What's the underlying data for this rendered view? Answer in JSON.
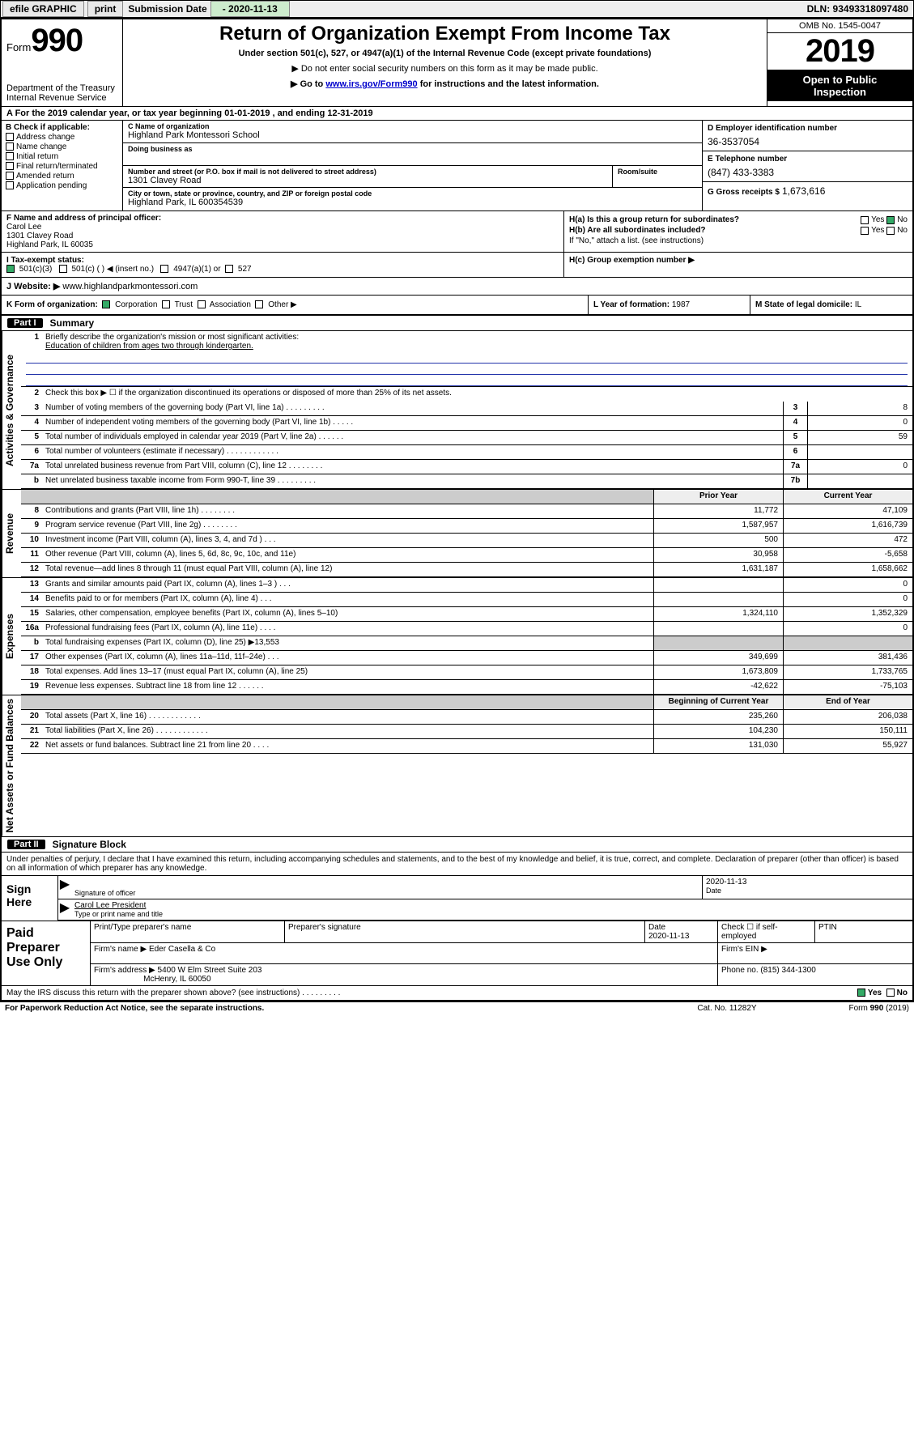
{
  "topbar": {
    "efile_label": "efile GRAPHIC",
    "print_btn": "print",
    "submission_label": "Submission Date",
    "submission_date": "- 2020-11-13",
    "dln": "DLN: 93493318097480"
  },
  "header": {
    "form_word": "Form",
    "form_number": "990",
    "dept": "Department of the Treasury",
    "irs": "Internal Revenue Service",
    "title": "Return of Organization Exempt From Income Tax",
    "subtitle": "Under section 501(c), 527, or 4947(a)(1) of the Internal Revenue Code (except private foundations)",
    "note1": "▶ Do not enter social security numbers on this form as it may be made public.",
    "note2_pre": "▶ Go to ",
    "note2_link": "www.irs.gov/Form990",
    "note2_post": " for instructions and the latest information.",
    "omb": "OMB No. 1545-0047",
    "year": "2019",
    "inspect1": "Open to Public",
    "inspect2": "Inspection"
  },
  "rowA": "A For the 2019 calendar year, or tax year beginning 01-01-2019    , and ending 12-31-2019",
  "colB": {
    "title": "B Check if applicable:",
    "items": [
      "Address change",
      "Name change",
      "Initial return",
      "Final return/terminated",
      "Amended return",
      "Application pending"
    ]
  },
  "colC": {
    "name_lbl": "C Name of organization",
    "name": "Highland Park Montessori School",
    "dba_lbl": "Doing business as",
    "dba": "",
    "addr_lbl": "Number and street (or P.O. box if mail is not delivered to street address)",
    "room_lbl": "Room/suite",
    "addr": "1301 Clavey Road",
    "city_lbl": "City or town, state or province, country, and ZIP or foreign postal code",
    "city": "Highland Park, IL  600354539"
  },
  "colD": {
    "ein_lbl": "D Employer identification number",
    "ein": "36-3537054",
    "tel_lbl": "E Telephone number",
    "tel": "(847) 433-3383",
    "gross_lbl": "G Gross receipts $",
    "gross": "1,673,616"
  },
  "colF": {
    "lbl": "F  Name and address of principal officer:",
    "name": "Carol Lee",
    "addr1": "1301 Clavey Road",
    "addr2": "Highland Park, IL  60035"
  },
  "colH": {
    "ha": "H(a)  Is this a group return for subordinates?",
    "hb": "H(b)  Are all subordinates included?",
    "hb_note": "If \"No,\" attach a list. (see instructions)",
    "hc": "H(c)  Group exemption number ▶",
    "yes": "Yes",
    "no": "No"
  },
  "rowI": {
    "lbl": "I   Tax-exempt status:",
    "o1": "501(c)(3)",
    "o2": "501(c) (   ) ◀ (insert no.)",
    "o3": "4947(a)(1) or",
    "o4": "527"
  },
  "rowJ": {
    "lbl": "J   Website: ▶",
    "val": "  www.highlandparkmontessori.com"
  },
  "rowK": {
    "lbl": "K Form of organization:",
    "corp": "Corporation",
    "trust": "Trust",
    "assoc": "Association",
    "other": "Other ▶"
  },
  "rowL": {
    "lbl": "L Year of formation:",
    "val": "1987"
  },
  "rowM": {
    "lbl": "M State of legal domicile:",
    "val": "IL"
  },
  "part1": {
    "num": "Part I",
    "title": "Summary"
  },
  "sideLabels": {
    "gov": "Activities & Governance",
    "rev": "Revenue",
    "exp": "Expenses",
    "net": "Net Assets or Fund Balances"
  },
  "summary": {
    "l1_lbl": "Briefly describe the organization's mission or most significant activities:",
    "l1_val": "Education of children from ages two through kindergarten.",
    "l2": "Check this box ▶ ☐  if the organization discontinued its operations or disposed of more than 25% of its net assets.",
    "rows_simple": [
      {
        "n": "3",
        "t": "Number of voting members of the governing body (Part VI, line 1a)   .    .    .    .    .    .    .    .    .",
        "bn": "3",
        "bv": "8"
      },
      {
        "n": "4",
        "t": "Number of independent voting members of the governing body (Part VI, line 1b)   .    .    .    .    .",
        "bn": "4",
        "bv": "0"
      },
      {
        "n": "5",
        "t": "Total number of individuals employed in calendar year 2019 (Part V, line 2a)   .    .    .    .    .    .",
        "bn": "5",
        "bv": "59"
      },
      {
        "n": "6",
        "t": "Total number of volunteers (estimate if necessary)   .    .    .    .    .    .    .    .    .    .    .    .",
        "bn": "6",
        "bv": ""
      },
      {
        "n": "7a",
        "t": "Total unrelated business revenue from Part VIII, column (C), line 12   .    .    .    .    .    .    .    .",
        "bn": "7a",
        "bv": "0"
      },
      {
        "n": "b",
        "t": "Net unrelated business taxable income from Form 990-T, line 39   .    .    .    .    .    .    .    .    .",
        "bn": "7b",
        "bv": ""
      }
    ],
    "col_hdr_py": "Prior Year",
    "col_hdr_cy": "Current Year",
    "rev_rows": [
      {
        "n": "8",
        "t": "Contributions and grants (Part VIII, line 1h)   .    .    .    .    .    .    .    .",
        "py": "11,772",
        "cy": "47,109"
      },
      {
        "n": "9",
        "t": "Program service revenue (Part VIII, line 2g)   .    .    .    .    .    .    .    .",
        "py": "1,587,957",
        "cy": "1,616,739"
      },
      {
        "n": "10",
        "t": "Investment income (Part VIII, column (A), lines 3, 4, and 7d )   .    .    .",
        "py": "500",
        "cy": "472"
      },
      {
        "n": "11",
        "t": "Other revenue (Part VIII, column (A), lines 5, 6d, 8c, 9c, 10c, and 11e)",
        "py": "30,958",
        "cy": "-5,658"
      },
      {
        "n": "12",
        "t": "Total revenue—add lines 8 through 11 (must equal Part VIII, column (A), line 12)",
        "py": "1,631,187",
        "cy": "1,658,662"
      }
    ],
    "exp_rows": [
      {
        "n": "13",
        "t": "Grants and similar amounts paid (Part IX, column (A), lines 1–3 )   .    .    .",
        "py": "",
        "cy": "0"
      },
      {
        "n": "14",
        "t": "Benefits paid to or for members (Part IX, column (A), line 4)   .    .    .",
        "py": "",
        "cy": "0"
      },
      {
        "n": "15",
        "t": "Salaries, other compensation, employee benefits (Part IX, column (A), lines 5–10)",
        "py": "1,324,110",
        "cy": "1,352,329"
      },
      {
        "n": "16a",
        "t": "Professional fundraising fees (Part IX, column (A), line 11e)   .    .    .    .",
        "py": "",
        "cy": "0"
      },
      {
        "n": "b",
        "t": "Total fundraising expenses (Part IX, column (D), line 25) ▶13,553",
        "py": "shade",
        "cy": "shade"
      },
      {
        "n": "17",
        "t": "Other expenses (Part IX, column (A), lines 11a–11d, 11f–24e)   .    .    .",
        "py": "349,699",
        "cy": "381,436"
      },
      {
        "n": "18",
        "t": "Total expenses. Add lines 13–17 (must equal Part IX, column (A), line 25)",
        "py": "1,673,809",
        "cy": "1,733,765"
      },
      {
        "n": "19",
        "t": "Revenue less expenses. Subtract line 18 from line 12   .    .    .    .    .    .",
        "py": "-42,622",
        "cy": "-75,103"
      }
    ],
    "col_hdr_by": "Beginning of Current Year",
    "col_hdr_ey": "End of Year",
    "net_rows": [
      {
        "n": "20",
        "t": "Total assets (Part X, line 16)   .    .    .    .    .    .    .    .    .    .    .    .",
        "py": "235,260",
        "cy": "206,038"
      },
      {
        "n": "21",
        "t": "Total liabilities (Part X, line 26)   .    .    .    .    .    .    .    .    .    .    .    .",
        "py": "104,230",
        "cy": "150,111"
      },
      {
        "n": "22",
        "t": "Net assets or fund balances. Subtract line 21 from line 20   .    .    .    .",
        "py": "131,030",
        "cy": "55,927"
      }
    ]
  },
  "part2": {
    "num": "Part II",
    "title": "Signature Block"
  },
  "sig": {
    "perjury": "Under penalties of perjury, I declare that I have examined this return, including accompanying schedules and statements, and to the best of my knowledge and belief, it is true, correct, and complete. Declaration of preparer (other than officer) is based on all information of which preparer has any knowledge.",
    "sign_here": "Sign Here",
    "sig_officer_lbl": "Signature of officer",
    "sig_date": "2020-11-13",
    "date_lbl": "Date",
    "name_title": "Carol Lee  President",
    "name_title_lbl": "Type or print name and title"
  },
  "paid": {
    "label": "Paid Preparer Use Only",
    "h_name": "Print/Type preparer's name",
    "h_sig": "Preparer's signature",
    "h_date": "Date",
    "h_date_val": "2020-11-13",
    "h_check": "Check ☐ if self-employed",
    "h_ptin": "PTIN",
    "firm_name_lbl": "Firm's name     ▶",
    "firm_name": "Eder Casella & Co",
    "firm_ein_lbl": "Firm's EIN ▶",
    "firm_addr_lbl": "Firm's address ▶",
    "firm_addr1": "5400 W Elm Street Suite 203",
    "firm_addr2": "McHenry, IL  60050",
    "firm_phone_lbl": "Phone no.",
    "firm_phone": "(815) 344-1300"
  },
  "discuss": {
    "txt": "May the IRS discuss this return with the preparer shown above? (see instructions)   .    .    .    .    .    .    .    .    .",
    "yes": "Yes",
    "no": "No"
  },
  "footer": {
    "l": "For Paperwork Reduction Act Notice, see the separate instructions.",
    "m": "Cat. No. 11282Y",
    "r": "Form 990 (2019)"
  }
}
